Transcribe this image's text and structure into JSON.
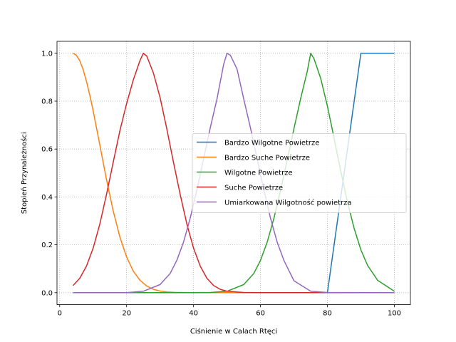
{
  "chart_data": {
    "type": "line",
    "title": "",
    "xlabel": "Ciśnienie w Calach Rtęci",
    "ylabel": "Stopień Przynależności",
    "xlim": [
      -0.8,
      104.8
    ],
    "ylim": [
      -0.05,
      1.05
    ],
    "xticks": [
      0,
      20,
      40,
      60,
      80,
      100
    ],
    "xtick_labels": [
      "0",
      "20",
      "40",
      "60",
      "80",
      "100"
    ],
    "yticks": [
      0.0,
      0.2,
      0.4,
      0.6,
      0.8,
      1.0
    ],
    "ytick_labels": [
      "0.0",
      "0.2",
      "0.4",
      "0.6",
      "0.8",
      "1.0"
    ],
    "grid": true,
    "legend_position": "center-right",
    "series": [
      {
        "name": "Bardzo Wilgotne Powietrze",
        "color": "#1f77b4",
        "x": [
          4,
          80,
          90,
          100
        ],
        "y": [
          0,
          0,
          1,
          1
        ]
      },
      {
        "name": "Bardzo Suche Powietrze",
        "color": "#ff7f0e",
        "x": [
          4,
          5,
          6,
          7,
          8,
          9,
          10,
          12,
          14,
          16,
          18,
          20,
          22,
          24,
          26,
          28,
          30,
          32,
          35,
          40,
          45,
          50,
          60,
          70,
          80,
          90,
          100
        ],
        "y": [
          1.0,
          0.992,
          0.969,
          0.932,
          0.883,
          0.825,
          0.76,
          0.617,
          0.472,
          0.341,
          0.232,
          0.149,
          0.09,
          0.052,
          0.028,
          0.014,
          0.007,
          0.003,
          0.001,
          0,
          0,
          0,
          0,
          0,
          0,
          0,
          0
        ]
      },
      {
        "name": "Wilgotne Powietrze",
        "color": "#2ca02c",
        "x": [
          4,
          40,
          45,
          50,
          55,
          58,
          60,
          62,
          64,
          66,
          68,
          70,
          72,
          74,
          75,
          76,
          78,
          80,
          82,
          84,
          86,
          88,
          90,
          92,
          95,
          100
        ],
        "y": [
          0,
          0,
          0.001,
          0.006,
          0.034,
          0.08,
          0.135,
          0.211,
          0.31,
          0.427,
          0.556,
          0.685,
          0.811,
          0.926,
          1.0,
          0.977,
          0.895,
          0.779,
          0.645,
          0.507,
          0.378,
          0.268,
          0.179,
          0.114,
          0.052,
          0.006
        ]
      },
      {
        "name": "Suche Powietrze",
        "color": "#d62728",
        "x": [
          4,
          6,
          8,
          10,
          12,
          14,
          16,
          18,
          20,
          22,
          24,
          25,
          26,
          28,
          30,
          32,
          34,
          36,
          38,
          40,
          42,
          44,
          46,
          48,
          50,
          55,
          60,
          70,
          80,
          100
        ],
        "y": [
          0.03,
          0.06,
          0.111,
          0.186,
          0.287,
          0.411,
          0.545,
          0.677,
          0.79,
          0.889,
          0.97,
          1.0,
          0.989,
          0.918,
          0.815,
          0.685,
          0.545,
          0.411,
          0.287,
          0.186,
          0.111,
          0.06,
          0.03,
          0.014,
          0.006,
          0.001,
          0,
          0,
          0,
          0
        ]
      },
      {
        "name": "Umiarkowana Wilgotność powietrza",
        "color": "#9467bd",
        "x": [
          4,
          20,
          25,
          30,
          33,
          35,
          37,
          39,
          41,
          43,
          45,
          47,
          49,
          50,
          51,
          53,
          55,
          57,
          59,
          61,
          63,
          65,
          67,
          70,
          75,
          80,
          100
        ],
        "y": [
          0,
          0,
          0.006,
          0.034,
          0.08,
          0.135,
          0.211,
          0.311,
          0.43,
          0.559,
          0.689,
          0.809,
          0.954,
          1.0,
          0.992,
          0.934,
          0.809,
          0.689,
          0.559,
          0.43,
          0.311,
          0.211,
          0.135,
          0.05,
          0.006,
          0.001,
          0
        ]
      }
    ]
  }
}
